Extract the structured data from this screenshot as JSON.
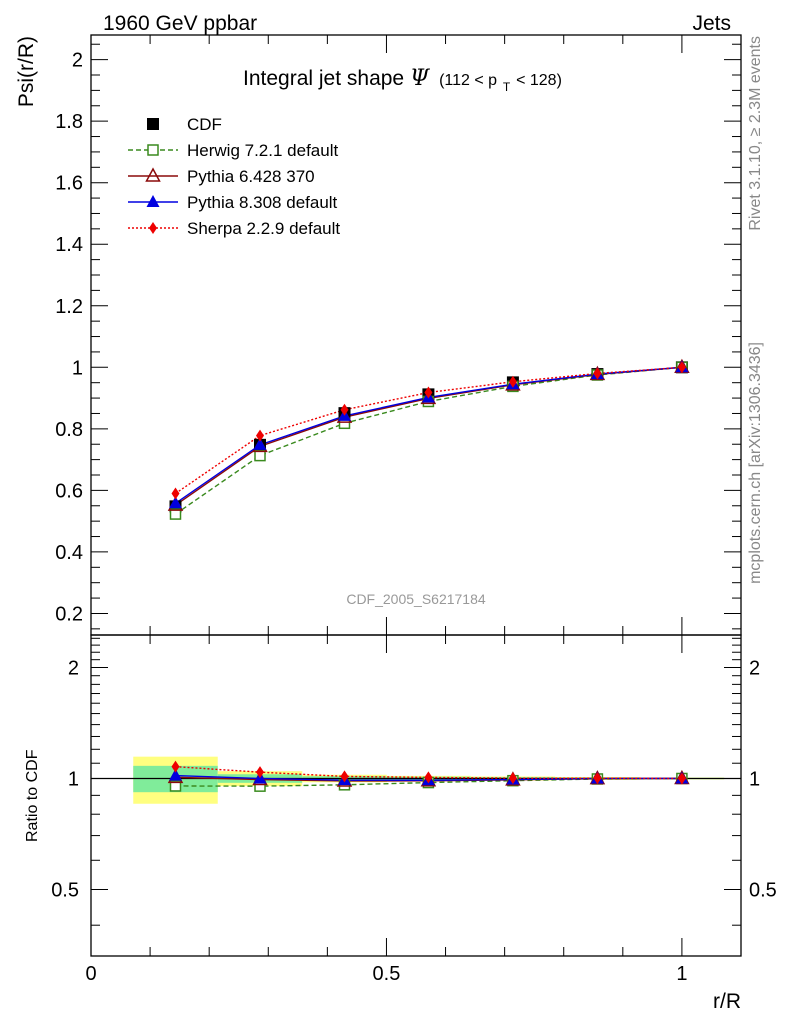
{
  "header": {
    "left": "1960 GeV ppbar",
    "right": "Jets"
  },
  "side_labels": {
    "rivet": "Rivet 3.1.10, ≥ 2.3M events",
    "mcplots": "mcplots.cern.ch [arXiv:1306.3436]"
  },
  "chart_data": {
    "type": "line",
    "title_main": "Integral jet shape",
    "title_symbol": "Ψ",
    "title_range": {
      "prefix": "(112 < p",
      "sub": "T",
      "suffix": " < 128)"
    },
    "watermark": "CDF_2005_S6217184",
    "xlabel": "r/R",
    "ylabel": "Psi(r/R)",
    "ratio_ylabel": "Ratio to CDF",
    "xlim": [
      0,
      1.1
    ],
    "ylim": [
      0.13,
      2.08
    ],
    "ratio_ylim": [
      0.33,
      2.45
    ],
    "ratio_scale": "log",
    "x_ticks": [
      "0",
      "0.5",
      "1"
    ],
    "y_ticks": [
      "0.2",
      "0.4",
      "0.6",
      "0.8",
      "1",
      "1.2",
      "1.4",
      "1.6",
      "1.8",
      "2"
    ],
    "ratio_ticks": [
      "0.5",
      "1",
      "2"
    ],
    "legend_position": "top-left",
    "x": [
      0.143,
      0.286,
      0.429,
      0.571,
      0.714,
      0.857,
      1.0
    ],
    "data": {
      "name": "CDF",
      "values": [
        0.548,
        0.748,
        0.851,
        0.912,
        0.951,
        0.978,
        1.0
      ],
      "band_inner": [
        0.045,
        0.02,
        0.012,
        0.01,
        0.008,
        0.006,
        0.004
      ],
      "band_outer": [
        0.08,
        0.035,
        0.02,
        0.015,
        0.012,
        0.009,
        0.006
      ]
    },
    "series": [
      {
        "name": "Herwig 7.2.1 default",
        "color": "#3a8a1e",
        "marker": "open-square",
        "dash": "5,3",
        "values": [
          0.523,
          0.713,
          0.818,
          0.889,
          0.938,
          0.975,
          1.0
        ]
      },
      {
        "name": "Pythia 6.428 370",
        "color": "#8b0a0a",
        "marker": "open-triangle",
        "dash": "",
        "values": [
          0.552,
          0.743,
          0.838,
          0.899,
          0.943,
          0.977,
          1.0
        ]
      },
      {
        "name": "Pythia 8.308 default",
        "color": "#0000e0",
        "marker": "filled-triangle",
        "dash": "",
        "values": [
          0.558,
          0.748,
          0.842,
          0.902,
          0.945,
          0.978,
          1.0
        ]
      },
      {
        "name": "Sherpa 2.2.9 default",
        "color": "#ee0000",
        "marker": "filled-diamond",
        "dash": "2,2",
        "values": [
          0.59,
          0.778,
          0.862,
          0.918,
          0.953,
          0.98,
          1.0
        ]
      }
    ]
  }
}
